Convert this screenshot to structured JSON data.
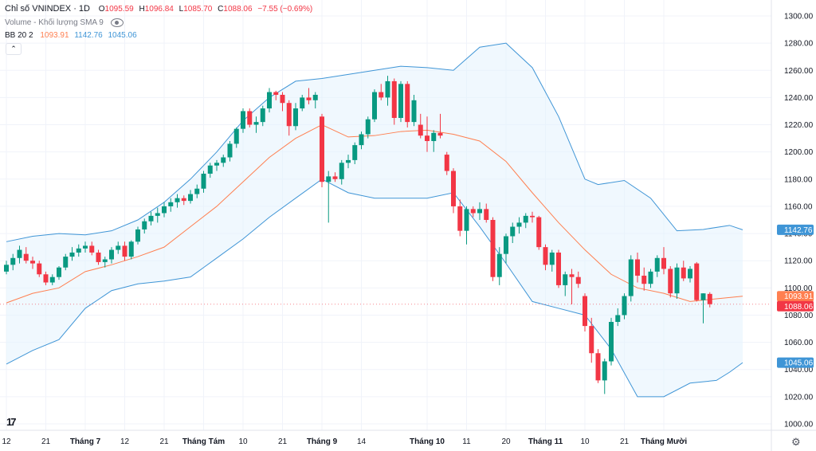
{
  "legend": {
    "title": "Chỉ số VNINDEX · 1D",
    "o_label": "O",
    "o_value": "1095.59",
    "h_label": "H",
    "h_value": "1096.84",
    "l_label": "L",
    "l_value": "1085.70",
    "c_label": "C",
    "c_value": "1088.06",
    "change": "−7.55 (−0.69%)",
    "volume": "Volume - Khối lượng SMA 9",
    "bb_label": "BB 20 2",
    "bb_basis": "1093.91",
    "bb_upper": "1142.76",
    "bb_lower": "1045.06"
  },
  "buttons": {
    "collapse": "⌃"
  },
  "icons": {
    "volume_toggle": "eye-icon",
    "collapse": "chevron-up-icon",
    "logo": "tradingview-logo-icon",
    "settings": "gear-icon"
  },
  "logo_text": "17",
  "colors": {
    "up": "#089981",
    "down": "#f23645",
    "basis": "#ff7f50",
    "bands": "#3f95d6",
    "fill": "#e3f2fd"
  },
  "chart_data": {
    "type": "candlestick",
    "title": "Chỉ số VNINDEX · 1D",
    "ylim": [
      995,
      1305
    ],
    "y_ticks": [
      "1000.00",
      "1020.00",
      "1040.00",
      "1060.00",
      "1080.00",
      "1100.00",
      "1120.00",
      "1140.00",
      "1160.00",
      "1180.00",
      "1200.00",
      "1220.00",
      "1240.00",
      "1260.00",
      "1280.00",
      "1300.00"
    ],
    "x_labels": [
      {
        "label": "12",
        "idx": 0
      },
      {
        "label": "21",
        "idx": 6
      },
      {
        "label": "Tháng 7",
        "idx": 12
      },
      {
        "label": "12",
        "idx": 18
      },
      {
        "label": "21",
        "idx": 24
      },
      {
        "label": "Tháng Tám",
        "idx": 30
      },
      {
        "label": "10",
        "idx": 36
      },
      {
        "label": "21",
        "idx": 42
      },
      {
        "label": "Tháng 9",
        "idx": 48
      },
      {
        "label": "14",
        "idx": 54
      },
      {
        "label": "Tháng 10",
        "idx": 64
      },
      {
        "label": "11",
        "idx": 70
      },
      {
        "label": "20",
        "idx": 76
      },
      {
        "label": "Tháng 11",
        "idx": 82
      },
      {
        "label": "10",
        "idx": 88
      },
      {
        "label": "21",
        "idx": 94
      },
      {
        "label": "Tháng Mười",
        "idx": 100
      }
    ],
    "candles": [
      [
        1112,
        1120,
        1110,
        1117
      ],
      [
        1117,
        1125,
        1113,
        1122
      ],
      [
        1122,
        1131,
        1118,
        1128
      ],
      [
        1125,
        1130,
        1118,
        1120
      ],
      [
        1120,
        1123,
        1114,
        1118
      ],
      [
        1118,
        1120,
        1108,
        1110
      ],
      [
        1110,
        1112,
        1102,
        1104
      ],
      [
        1104,
        1110,
        1102,
        1108
      ],
      [
        1108,
        1116,
        1106,
        1115
      ],
      [
        1115,
        1125,
        1113,
        1123
      ],
      [
        1123,
        1130,
        1120,
        1126
      ],
      [
        1126,
        1132,
        1123,
        1129
      ],
      [
        1129,
        1134,
        1126,
        1131
      ],
      [
        1131,
        1134,
        1124,
        1126
      ],
      [
        1126,
        1128,
        1117,
        1119
      ],
      [
        1119,
        1123,
        1115,
        1121
      ],
      [
        1121,
        1130,
        1118,
        1128
      ],
      [
        1128,
        1134,
        1125,
        1131
      ],
      [
        1131,
        1134,
        1120,
        1123
      ],
      [
        1123,
        1135,
        1121,
        1134
      ],
      [
        1134,
        1145,
        1132,
        1143
      ],
      [
        1143,
        1151,
        1140,
        1149
      ],
      [
        1149,
        1156,
        1146,
        1153
      ],
      [
        1153,
        1159,
        1148,
        1155
      ],
      [
        1155,
        1163,
        1152,
        1160
      ],
      [
        1160,
        1166,
        1156,
        1163
      ],
      [
        1163,
        1169,
        1159,
        1166
      ],
      [
        1166,
        1168,
        1161,
        1164
      ],
      [
        1164,
        1172,
        1162,
        1169
      ],
      [
        1169,
        1176,
        1166,
        1173
      ],
      [
        1173,
        1186,
        1170,
        1184
      ],
      [
        1184,
        1192,
        1181,
        1190
      ],
      [
        1190,
        1194,
        1186,
        1192
      ],
      [
        1192,
        1198,
        1189,
        1196
      ],
      [
        1196,
        1208,
        1193,
        1206
      ],
      [
        1206,
        1218,
        1203,
        1217
      ],
      [
        1217,
        1232,
        1214,
        1230
      ],
      [
        1230,
        1232,
        1218,
        1220
      ],
      [
        1220,
        1226,
        1214,
        1222
      ],
      [
        1222,
        1234,
        1219,
        1232
      ],
      [
        1232,
        1247,
        1229,
        1244
      ],
      [
        1244,
        1245,
        1238,
        1242
      ],
      [
        1242,
        1244,
        1230,
        1236
      ],
      [
        1236,
        1238,
        1212,
        1219
      ],
      [
        1219,
        1236,
        1216,
        1232
      ],
      [
        1232,
        1242,
        1230,
        1240
      ],
      [
        1240,
        1247,
        1235,
        1238
      ],
      [
        1238,
        1244,
        1232,
        1242
      ],
      [
        1226,
        1228,
        1174,
        1178
      ],
      [
        1178,
        1186,
        1148,
        1182
      ],
      [
        1182,
        1185,
        1178,
        1180
      ],
      [
        1180,
        1194,
        1176,
        1192
      ],
      [
        1192,
        1198,
        1188,
        1194
      ],
      [
        1194,
        1207,
        1191,
        1205
      ],
      [
        1205,
        1215,
        1202,
        1213
      ],
      [
        1213,
        1226,
        1210,
        1224
      ],
      [
        1224,
        1246,
        1222,
        1244
      ],
      [
        1244,
        1250,
        1238,
        1240
      ],
      [
        1240,
        1256,
        1234,
        1252
      ],
      [
        1252,
        1254,
        1220,
        1225
      ],
      [
        1225,
        1252,
        1222,
        1250
      ],
      [
        1250,
        1252,
        1218,
        1222
      ],
      [
        1222,
        1242,
        1219,
        1238
      ],
      [
        1220,
        1228,
        1210,
        1212
      ],
      [
        1212,
        1226,
        1200,
        1208
      ],
      [
        1208,
        1216,
        1200,
        1214
      ],
      [
        1214,
        1228,
        1210,
        1212
      ],
      [
        1198,
        1200,
        1183,
        1186
      ],
      [
        1186,
        1188,
        1155,
        1160
      ],
      [
        1160,
        1165,
        1138,
        1142
      ],
      [
        1142,
        1160,
        1132,
        1158
      ],
      [
        1158,
        1160,
        1152,
        1155
      ],
      [
        1155,
        1163,
        1150,
        1158
      ],
      [
        1158,
        1162,
        1148,
        1150
      ],
      [
        1150,
        1152,
        1105,
        1108
      ],
      [
        1108,
        1130,
        1102,
        1125
      ],
      [
        1125,
        1140,
        1118,
        1138
      ],
      [
        1138,
        1148,
        1133,
        1145
      ],
      [
        1145,
        1152,
        1140,
        1148
      ],
      [
        1148,
        1155,
        1144,
        1153
      ],
      [
        1153,
        1156,
        1148,
        1152
      ],
      [
        1152,
        1153,
        1128,
        1130
      ],
      [
        1130,
        1132,
        1113,
        1117
      ],
      [
        1117,
        1128,
        1112,
        1126
      ],
      [
        1126,
        1128,
        1100,
        1102
      ],
      [
        1102,
        1112,
        1094,
        1110
      ],
      [
        1110,
        1114,
        1088,
        1108
      ],
      [
        1108,
        1112,
        1100,
        1103
      ],
      [
        1094,
        1096,
        1068,
        1072
      ],
      [
        1072,
        1078,
        1045,
        1052
      ],
      [
        1052,
        1055,
        1030,
        1032
      ],
      [
        1032,
        1048,
        1022,
        1046
      ],
      [
        1046,
        1078,
        1043,
        1075
      ],
      [
        1075,
        1085,
        1072,
        1080
      ],
      [
        1080,
        1096,
        1077,
        1094
      ],
      [
        1094,
        1124,
        1090,
        1121
      ],
      [
        1121,
        1126,
        1104,
        1109
      ],
      [
        1109,
        1115,
        1098,
        1103
      ],
      [
        1103,
        1114,
        1100,
        1112
      ],
      [
        1112,
        1124,
        1108,
        1122
      ],
      [
        1122,
        1130,
        1110,
        1114
      ],
      [
        1114,
        1116,
        1093,
        1096
      ],
      [
        1096,
        1118,
        1092,
        1115
      ],
      [
        1115,
        1120,
        1105,
        1107
      ],
      [
        1107,
        1116,
        1104,
        1114
      ],
      [
        1118,
        1119,
        1090,
        1091
      ],
      [
        1091,
        1096,
        1074,
        1096
      ],
      [
        1095.59,
        1096.84,
        1085.7,
        1088.06
      ]
    ],
    "bb_upper": [
      [
        0,
        1134
      ],
      [
        4,
        1138
      ],
      [
        8,
        1140
      ],
      [
        12,
        1139
      ],
      [
        16,
        1142
      ],
      [
        20,
        1150
      ],
      [
        24,
        1163
      ],
      [
        28,
        1180
      ],
      [
        32,
        1200
      ],
      [
        36,
        1223
      ],
      [
        40,
        1240
      ],
      [
        44,
        1252
      ],
      [
        48,
        1254
      ],
      [
        52,
        1257
      ],
      [
        56,
        1260
      ],
      [
        60,
        1263
      ],
      [
        64,
        1262
      ],
      [
        68,
        1260
      ],
      [
        72,
        1277
      ],
      [
        76,
        1280
      ],
      [
        80,
        1262
      ],
      [
        84,
        1226
      ],
      [
        88,
        1180
      ],
      [
        90,
        1176
      ],
      [
        94,
        1179
      ],
      [
        98,
        1166
      ],
      [
        102,
        1142
      ],
      [
        106,
        1143
      ],
      [
        110,
        1146
      ],
      [
        112,
        1142.76
      ]
    ],
    "bb_basis": [
      [
        0,
        1089
      ],
      [
        4,
        1096
      ],
      [
        8,
        1100
      ],
      [
        12,
        1112
      ],
      [
        16,
        1117
      ],
      [
        20,
        1123
      ],
      [
        24,
        1130
      ],
      [
        28,
        1145
      ],
      [
        32,
        1160
      ],
      [
        36,
        1178
      ],
      [
        40,
        1196
      ],
      [
        44,
        1210
      ],
      [
        48,
        1220
      ],
      [
        52,
        1211
      ],
      [
        56,
        1212
      ],
      [
        60,
        1215
      ],
      [
        64,
        1216
      ],
      [
        68,
        1213
      ],
      [
        72,
        1208
      ],
      [
        76,
        1193
      ],
      [
        80,
        1170
      ],
      [
        84,
        1148
      ],
      [
        88,
        1128
      ],
      [
        92,
        1110
      ],
      [
        96,
        1100
      ],
      [
        100,
        1096
      ],
      [
        104,
        1090
      ],
      [
        108,
        1092
      ],
      [
        112,
        1093.91
      ]
    ],
    "bb_lower": [
      [
        0,
        1044
      ],
      [
        4,
        1054
      ],
      [
        8,
        1062
      ],
      [
        12,
        1085
      ],
      [
        16,
        1098
      ],
      [
        20,
        1103
      ],
      [
        24,
        1105
      ],
      [
        28,
        1108
      ],
      [
        32,
        1122
      ],
      [
        36,
        1136
      ],
      [
        40,
        1152
      ],
      [
        44,
        1166
      ],
      [
        48,
        1180
      ],
      [
        52,
        1170
      ],
      [
        56,
        1166
      ],
      [
        60,
        1166
      ],
      [
        64,
        1166
      ],
      [
        68,
        1170
      ],
      [
        72,
        1145
      ],
      [
        76,
        1118
      ],
      [
        80,
        1090
      ],
      [
        84,
        1085
      ],
      [
        88,
        1080
      ],
      [
        92,
        1055
      ],
      [
        96,
        1020
      ],
      [
        100,
        1020
      ],
      [
        104,
        1030
      ],
      [
        108,
        1032
      ],
      [
        110,
        1038
      ],
      [
        112,
        1045.06
      ]
    ],
    "last_close": 1088.06,
    "labels": {
      "bb_upper_tag": "1142.76",
      "bb_basis_tag": "1093.91",
      "close_tag": "1088.06",
      "bb_lower_tag": "1045.06"
    }
  }
}
